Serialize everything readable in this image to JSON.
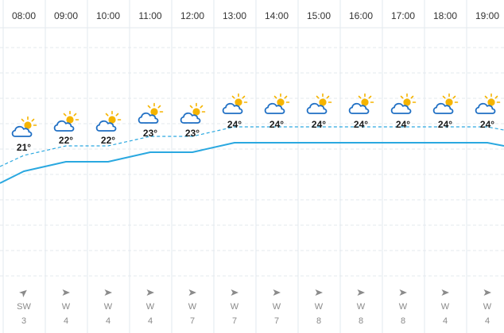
{
  "hours": [
    "08:00",
    "09:00",
    "10:00",
    "11:00",
    "12:00",
    "13:00",
    "14:00",
    "15:00",
    "16:00",
    "17:00",
    "18:00",
    "19:00"
  ],
  "temps": [
    "21°",
    "22°",
    "22°",
    "23°",
    "23°",
    "24°",
    "24°",
    "24°",
    "24°",
    "24°",
    "24°",
    "24°"
  ],
  "temps_c": [
    21,
    22,
    22,
    23,
    23,
    24,
    24,
    24,
    24,
    24,
    24,
    24
  ],
  "weather_icons": [
    "sun-cloud-icon",
    "sun-cloud-icon",
    "sun-cloud-icon",
    "sun-cloud-icon",
    "sun-cloud-icon",
    "sun-cloud-icon",
    "sun-cloud-icon",
    "sun-cloud-icon",
    "sun-cloud-icon",
    "sun-cloud-icon",
    "sun-cloud-icon",
    "sun-cloud-icon"
  ],
  "wind": {
    "directions": [
      "SW",
      "W",
      "W",
      "W",
      "W",
      "W",
      "W",
      "W",
      "W",
      "W",
      "W",
      "W"
    ],
    "speeds": [
      "3",
      "4",
      "4",
      "4",
      "7",
      "7",
      "7",
      "8",
      "8",
      "8",
      "4",
      "4"
    ]
  },
  "colors": {
    "line_solid": "#2aa8e0",
    "line_dashed": "#2aa8e0",
    "cloud_outline": "#1f6fc4",
    "sun": "#f5b400",
    "grid": "#dde3ea"
  }
}
